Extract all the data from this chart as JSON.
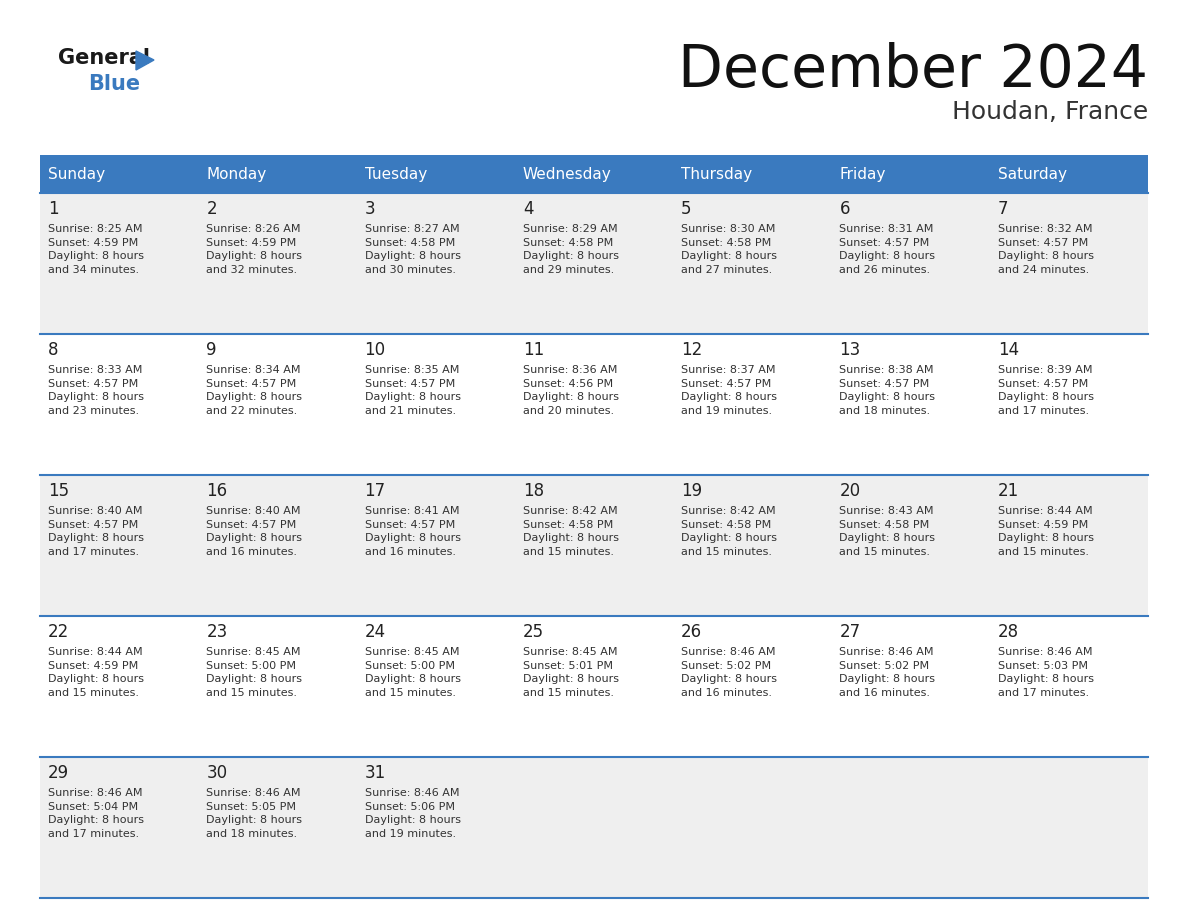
{
  "title": "December 2024",
  "subtitle": "Houdan, France",
  "header_color": "#3a7abf",
  "header_text_color": "#ffffff",
  "day_names": [
    "Sunday",
    "Monday",
    "Tuesday",
    "Wednesday",
    "Thursday",
    "Friday",
    "Saturday"
  ],
  "row_colors": [
    "#efefef",
    "#ffffff"
  ],
  "separator_color": "#3a7abf",
  "text_color": "#222222",
  "cell_text_color": "#333333",
  "background_color": "#ffffff",
  "days": [
    {
      "day": 1,
      "col": 0,
      "row": 0,
      "sunrise": "8:25 AM",
      "sunset": "4:59 PM",
      "hours": 8,
      "minutes": 34
    },
    {
      "day": 2,
      "col": 1,
      "row": 0,
      "sunrise": "8:26 AM",
      "sunset": "4:59 PM",
      "hours": 8,
      "minutes": 32
    },
    {
      "day": 3,
      "col": 2,
      "row": 0,
      "sunrise": "8:27 AM",
      "sunset": "4:58 PM",
      "hours": 8,
      "minutes": 30
    },
    {
      "day": 4,
      "col": 3,
      "row": 0,
      "sunrise": "8:29 AM",
      "sunset": "4:58 PM",
      "hours": 8,
      "minutes": 29
    },
    {
      "day": 5,
      "col": 4,
      "row": 0,
      "sunrise": "8:30 AM",
      "sunset": "4:58 PM",
      "hours": 8,
      "minutes": 27
    },
    {
      "day": 6,
      "col": 5,
      "row": 0,
      "sunrise": "8:31 AM",
      "sunset": "4:57 PM",
      "hours": 8,
      "minutes": 26
    },
    {
      "day": 7,
      "col": 6,
      "row": 0,
      "sunrise": "8:32 AM",
      "sunset": "4:57 PM",
      "hours": 8,
      "minutes": 24
    },
    {
      "day": 8,
      "col": 0,
      "row": 1,
      "sunrise": "8:33 AM",
      "sunset": "4:57 PM",
      "hours": 8,
      "minutes": 23
    },
    {
      "day": 9,
      "col": 1,
      "row": 1,
      "sunrise": "8:34 AM",
      "sunset": "4:57 PM",
      "hours": 8,
      "minutes": 22
    },
    {
      "day": 10,
      "col": 2,
      "row": 1,
      "sunrise": "8:35 AM",
      "sunset": "4:57 PM",
      "hours": 8,
      "minutes": 21
    },
    {
      "day": 11,
      "col": 3,
      "row": 1,
      "sunrise": "8:36 AM",
      "sunset": "4:56 PM",
      "hours": 8,
      "minutes": 20
    },
    {
      "day": 12,
      "col": 4,
      "row": 1,
      "sunrise": "8:37 AM",
      "sunset": "4:57 PM",
      "hours": 8,
      "minutes": 19
    },
    {
      "day": 13,
      "col": 5,
      "row": 1,
      "sunrise": "8:38 AM",
      "sunset": "4:57 PM",
      "hours": 8,
      "minutes": 18
    },
    {
      "day": 14,
      "col": 6,
      "row": 1,
      "sunrise": "8:39 AM",
      "sunset": "4:57 PM",
      "hours": 8,
      "minutes": 17
    },
    {
      "day": 15,
      "col": 0,
      "row": 2,
      "sunrise": "8:40 AM",
      "sunset": "4:57 PM",
      "hours": 8,
      "minutes": 17
    },
    {
      "day": 16,
      "col": 1,
      "row": 2,
      "sunrise": "8:40 AM",
      "sunset": "4:57 PM",
      "hours": 8,
      "minutes": 16
    },
    {
      "day": 17,
      "col": 2,
      "row": 2,
      "sunrise": "8:41 AM",
      "sunset": "4:57 PM",
      "hours": 8,
      "minutes": 16
    },
    {
      "day": 18,
      "col": 3,
      "row": 2,
      "sunrise": "8:42 AM",
      "sunset": "4:58 PM",
      "hours": 8,
      "minutes": 15
    },
    {
      "day": 19,
      "col": 4,
      "row": 2,
      "sunrise": "8:42 AM",
      "sunset": "4:58 PM",
      "hours": 8,
      "minutes": 15
    },
    {
      "day": 20,
      "col": 5,
      "row": 2,
      "sunrise": "8:43 AM",
      "sunset": "4:58 PM",
      "hours": 8,
      "minutes": 15
    },
    {
      "day": 21,
      "col": 6,
      "row": 2,
      "sunrise": "8:44 AM",
      "sunset": "4:59 PM",
      "hours": 8,
      "minutes": 15
    },
    {
      "day": 22,
      "col": 0,
      "row": 3,
      "sunrise": "8:44 AM",
      "sunset": "4:59 PM",
      "hours": 8,
      "minutes": 15
    },
    {
      "day": 23,
      "col": 1,
      "row": 3,
      "sunrise": "8:45 AM",
      "sunset": "5:00 PM",
      "hours": 8,
      "minutes": 15
    },
    {
      "day": 24,
      "col": 2,
      "row": 3,
      "sunrise": "8:45 AM",
      "sunset": "5:00 PM",
      "hours": 8,
      "minutes": 15
    },
    {
      "day": 25,
      "col": 3,
      "row": 3,
      "sunrise": "8:45 AM",
      "sunset": "5:01 PM",
      "hours": 8,
      "minutes": 15
    },
    {
      "day": 26,
      "col": 4,
      "row": 3,
      "sunrise": "8:46 AM",
      "sunset": "5:02 PM",
      "hours": 8,
      "minutes": 16
    },
    {
      "day": 27,
      "col": 5,
      "row": 3,
      "sunrise": "8:46 AM",
      "sunset": "5:02 PM",
      "hours": 8,
      "minutes": 16
    },
    {
      "day": 28,
      "col": 6,
      "row": 3,
      "sunrise": "8:46 AM",
      "sunset": "5:03 PM",
      "hours": 8,
      "minutes": 17
    },
    {
      "day": 29,
      "col": 0,
      "row": 4,
      "sunrise": "8:46 AM",
      "sunset": "5:04 PM",
      "hours": 8,
      "minutes": 17
    },
    {
      "day": 30,
      "col": 1,
      "row": 4,
      "sunrise": "8:46 AM",
      "sunset": "5:05 PM",
      "hours": 8,
      "minutes": 18
    },
    {
      "day": 31,
      "col": 2,
      "row": 4,
      "sunrise": "8:46 AM",
      "sunset": "5:06 PM",
      "hours": 8,
      "minutes": 19
    }
  ]
}
